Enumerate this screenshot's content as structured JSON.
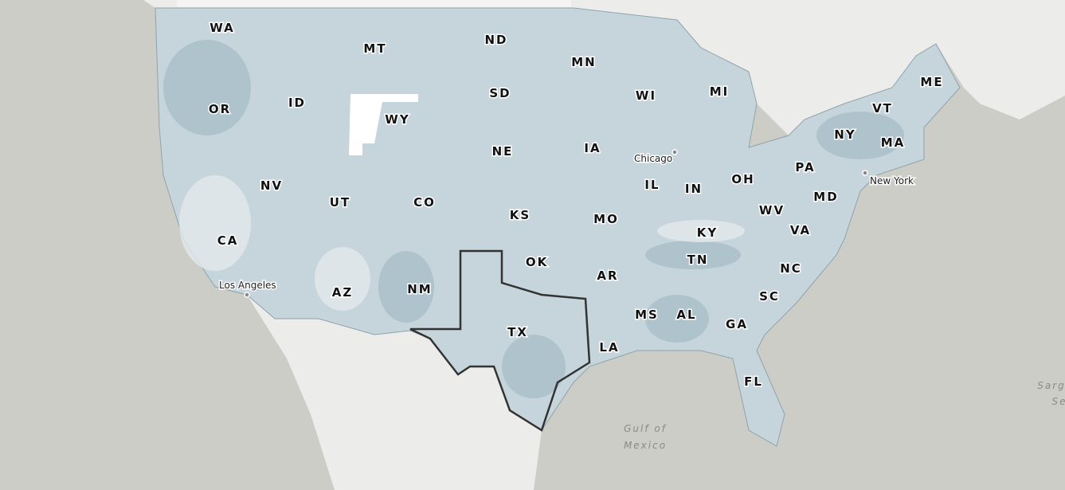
{
  "map": {
    "colors": {
      "water": "#cccdc6",
      "land": "#ececea",
      "county_fill": "#c6d5db",
      "county_fill_dark": "#9fb8c1",
      "county_fill_light": "#dfe7ea",
      "county_border": "#8fa3ab",
      "highlight_border": "#333333"
    },
    "highlighted_state": "TX",
    "states": [
      "WA",
      "MT",
      "ND",
      "MN",
      "OR",
      "ID",
      "SD",
      "WI",
      "MI",
      "ME",
      "WY",
      "VT",
      "NY",
      "MA",
      "NE",
      "IA",
      "PA",
      "NV",
      "UT",
      "CO",
      "IL",
      "IN",
      "OH",
      "MD",
      "WV",
      "KS",
      "MO",
      "VA",
      "CA",
      "KY",
      "OK",
      "TN",
      "NC",
      "AR",
      "AZ",
      "NM",
      "SC",
      "MS",
      "AL",
      "GA",
      "TX",
      "LA",
      "FL"
    ],
    "cities": [
      "Chicago",
      "New York",
      "Los Angeles"
    ],
    "water_labels": {
      "gulf_line1": "Gulf of",
      "gulf_line2": "Mexico",
      "sargasso_line1": "Sarg",
      "sargasso_line2": "Se"
    }
  }
}
